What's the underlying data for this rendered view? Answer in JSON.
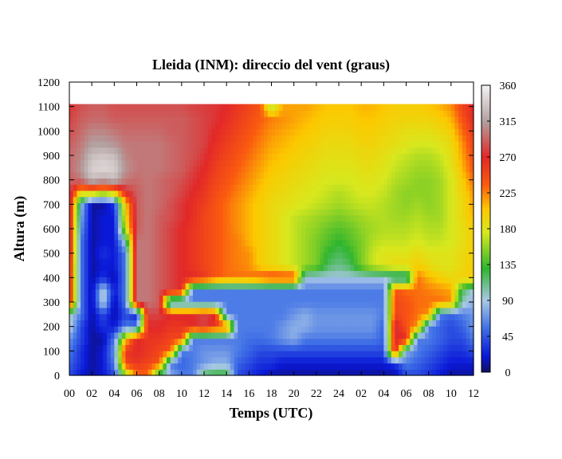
{
  "chart_data": {
    "type": "heatmap",
    "title": "Lleida (INM): direccio del vent (graus)",
    "xlabel": "Temps (UTC)",
    "ylabel": "Altura (m)",
    "x_ticks": [
      "00",
      "02",
      "04",
      "06",
      "08",
      "10",
      "12",
      "14",
      "16",
      "18",
      "20",
      "22",
      "24",
      "02",
      "04",
      "06",
      "08",
      "10",
      "12"
    ],
    "x_range_hours": [
      0,
      36
    ],
    "y_ticks": [
      0,
      100,
      200,
      300,
      400,
      500,
      600,
      700,
      800,
      900,
      1000,
      1100,
      1200
    ],
    "ylim": [
      0,
      1200
    ],
    "data_top_m": 1110,
    "colorbar": {
      "range": [
        0,
        360
      ],
      "ticks": [
        0,
        45,
        90,
        135,
        180,
        225,
        270,
        315,
        360
      ],
      "stops": [
        {
          "value": 0,
          "color": "#101060"
        },
        {
          "value": 20,
          "color": "#0a18d8"
        },
        {
          "value": 55,
          "color": "#3f6fe6"
        },
        {
          "value": 90,
          "color": "#a9c8e6"
        },
        {
          "value": 130,
          "color": "#2fb52f"
        },
        {
          "value": 175,
          "color": "#d8e81e"
        },
        {
          "value": 205,
          "color": "#fcc800"
        },
        {
          "value": 235,
          "color": "#fa5a10"
        },
        {
          "value": 270,
          "color": "#e22828"
        },
        {
          "value": 315,
          "color": "#b2a0a0"
        },
        {
          "value": 360,
          "color": "#f4f4f4"
        }
      ]
    },
    "z_grid": {
      "note_x": "hours from 00 UTC day 1, step 1h (0..36)",
      "note_y": "height in m, rows at 0,50,100,...,1100",
      "x": [
        0,
        1,
        2,
        3,
        4,
        5,
        6,
        7,
        8,
        9,
        10,
        11,
        12,
        13,
        14,
        15,
        16,
        17,
        18,
        19,
        20,
        21,
        22,
        23,
        24,
        25,
        26,
        27,
        28,
        29,
        30,
        31,
        32,
        33,
        34,
        35,
        36
      ],
      "y": [
        0,
        50,
        100,
        150,
        200,
        250,
        300,
        350,
        400,
        450,
        500,
        550,
        600,
        650,
        700,
        750,
        800,
        850,
        900,
        950,
        1000,
        1050,
        1100
      ],
      "z": [
        [
          40,
          20,
          10,
          20,
          40,
          150,
          230,
          230,
          110,
          80,
          60,
          60,
          120,
          130,
          130,
          40,
          30,
          20,
          10,
          10,
          10,
          10,
          10,
          10,
          10,
          10,
          10,
          10,
          10,
          10,
          40,
          40,
          30,
          20,
          10,
          10,
          10
        ],
        [
          50,
          30,
          10,
          20,
          60,
          250,
          260,
          250,
          240,
          60,
          50,
          60,
          70,
          80,
          80,
          50,
          40,
          30,
          30,
          20,
          20,
          20,
          20,
          20,
          20,
          20,
          20,
          20,
          20,
          30,
          60,
          50,
          40,
          30,
          20,
          20,
          20
        ],
        [
          60,
          30,
          10,
          20,
          70,
          260,
          270,
          260,
          250,
          240,
          60,
          60,
          70,
          70,
          70,
          60,
          50,
          40,
          40,
          40,
          40,
          40,
          40,
          40,
          40,
          40,
          40,
          40,
          40,
          280,
          80,
          60,
          50,
          40,
          30,
          30,
          40
        ],
        [
          70,
          40,
          10,
          10,
          60,
          200,
          270,
          260,
          260,
          250,
          250,
          60,
          60,
          60,
          60,
          60,
          55,
          55,
          60,
          70,
          80,
          60,
          60,
          60,
          60,
          60,
          60,
          60,
          50,
          270,
          270,
          60,
          60,
          50,
          40,
          40,
          60
        ],
        [
          100,
          40,
          10,
          30,
          20,
          60,
          60,
          270,
          270,
          260,
          260,
          270,
          280,
          260,
          250,
          60,
          60,
          60,
          60,
          70,
          80,
          80,
          70,
          70,
          70,
          70,
          70,
          70,
          50,
          280,
          240,
          220,
          60,
          50,
          40,
          50,
          70
        ],
        [
          100,
          60,
          10,
          40,
          10,
          40,
          20,
          280,
          280,
          270,
          270,
          270,
          280,
          270,
          60,
          60,
          60,
          60,
          60,
          60,
          70,
          80,
          70,
          70,
          70,
          70,
          70,
          70,
          60,
          250,
          240,
          230,
          220,
          60,
          50,
          60,
          70
        ],
        [
          280,
          60,
          10,
          100,
          10,
          60,
          300,
          300,
          290,
          60,
          60,
          60,
          60,
          60,
          60,
          60,
          60,
          60,
          60,
          60,
          60,
          60,
          60,
          60,
          60,
          60,
          60,
          60,
          60,
          250,
          240,
          230,
          230,
          230,
          220,
          100,
          80
        ],
        [
          280,
          60,
          10,
          100,
          20,
          60,
          300,
          300,
          290,
          280,
          270,
          60,
          60,
          60,
          60,
          60,
          60,
          60,
          60,
          60,
          60,
          60,
          60,
          60,
          60,
          60,
          60,
          60,
          60,
          240,
          230,
          230,
          225,
          220,
          215,
          120,
          90
        ],
        [
          280,
          60,
          10,
          30,
          10,
          60,
          300,
          300,
          290,
          280,
          270,
          270,
          260,
          240,
          230,
          230,
          230,
          240,
          250,
          250,
          250,
          90,
          90,
          90,
          90,
          90,
          90,
          90,
          90,
          90,
          90,
          230,
          210,
          200,
          190,
          200,
          200
        ],
        [
          280,
          60,
          10,
          20,
          20,
          60,
          300,
          300,
          290,
          280,
          270,
          260,
          250,
          240,
          230,
          225,
          220,
          200,
          190,
          180,
          170,
          160,
          150,
          120,
          110,
          120,
          150,
          170,
          180,
          190,
          190,
          200,
          190,
          180,
          180,
          190,
          200
        ],
        [
          290,
          60,
          10,
          30,
          20,
          60,
          300,
          300,
          290,
          280,
          270,
          260,
          250,
          240,
          230,
          225,
          220,
          200,
          190,
          180,
          170,
          160,
          150,
          130,
          120,
          130,
          150,
          170,
          180,
          180,
          180,
          190,
          180,
          180,
          180,
          190,
          200
        ],
        [
          290,
          60,
          10,
          20,
          20,
          100,
          300,
          300,
          290,
          280,
          270,
          260,
          250,
          240,
          230,
          225,
          210,
          200,
          190,
          180,
          170,
          160,
          150,
          140,
          130,
          140,
          150,
          165,
          170,
          170,
          170,
          175,
          170,
          170,
          175,
          185,
          200
        ],
        [
          290,
          70,
          10,
          20,
          20,
          170,
          290,
          300,
          290,
          280,
          270,
          260,
          250,
          240,
          230,
          220,
          210,
          200,
          190,
          180,
          170,
          160,
          155,
          145,
          140,
          145,
          155,
          160,
          165,
          165,
          165,
          170,
          165,
          165,
          175,
          185,
          200
        ],
        [
          290,
          80,
          10,
          20,
          20,
          190,
          290,
          300,
          290,
          285,
          275,
          265,
          250,
          240,
          230,
          220,
          210,
          200,
          190,
          180,
          170,
          165,
          160,
          155,
          150,
          155,
          160,
          165,
          165,
          160,
          160,
          165,
          160,
          160,
          175,
          190,
          210
        ],
        [
          290,
          90,
          10,
          10,
          30,
          200,
          290,
          300,
          295,
          285,
          275,
          265,
          255,
          240,
          230,
          220,
          210,
          200,
          190,
          185,
          180,
          175,
          170,
          165,
          160,
          165,
          170,
          170,
          165,
          160,
          155,
          160,
          155,
          160,
          175,
          190,
          215
        ],
        [
          290,
          190,
          200,
          180,
          200,
          270,
          290,
          300,
          295,
          290,
          280,
          270,
          260,
          245,
          235,
          225,
          215,
          205,
          195,
          190,
          185,
          180,
          175,
          170,
          165,
          170,
          175,
          175,
          170,
          160,
          155,
          155,
          155,
          160,
          175,
          195,
          220
        ],
        [
          290,
          300,
          330,
          320,
          330,
          300,
          295,
          300,
          295,
          290,
          285,
          275,
          265,
          250,
          240,
          230,
          220,
          210,
          200,
          195,
          190,
          185,
          180,
          175,
          175,
          175,
          180,
          180,
          175,
          165,
          160,
          155,
          155,
          160,
          175,
          200,
          230
        ],
        [
          295,
          310,
          340,
          345,
          340,
          310,
          300,
          300,
          300,
          295,
          290,
          280,
          270,
          255,
          245,
          235,
          225,
          215,
          205,
          200,
          195,
          190,
          185,
          180,
          180,
          180,
          185,
          185,
          180,
          170,
          165,
          160,
          160,
          165,
          180,
          210,
          240
        ],
        [
          295,
          305,
          330,
          335,
          330,
          305,
          300,
          300,
          300,
          295,
          290,
          285,
          275,
          260,
          250,
          240,
          230,
          220,
          210,
          205,
          200,
          195,
          190,
          185,
          185,
          185,
          190,
          190,
          185,
          175,
          170,
          165,
          165,
          170,
          185,
          215,
          245
        ],
        [
          290,
          300,
          315,
          315,
          310,
          300,
          300,
          300,
          300,
          295,
          290,
          285,
          280,
          265,
          255,
          245,
          235,
          225,
          215,
          210,
          205,
          200,
          195,
          190,
          190,
          190,
          195,
          195,
          190,
          185,
          180,
          175,
          175,
          180,
          190,
          220,
          250
        ],
        [
          285,
          295,
          305,
          305,
          300,
          295,
          295,
          295,
          295,
          290,
          290,
          285,
          280,
          270,
          260,
          250,
          240,
          230,
          220,
          215,
          210,
          205,
          200,
          195,
          195,
          195,
          200,
          200,
          195,
          190,
          185,
          185,
          185,
          190,
          200,
          230,
          260
        ],
        [
          280,
          290,
          295,
          295,
          290,
          290,
          290,
          290,
          290,
          290,
          290,
          285,
          280,
          275,
          265,
          255,
          245,
          235,
          225,
          220,
          215,
          210,
          205,
          200,
          200,
          200,
          205,
          205,
          200,
          195,
          195,
          195,
          195,
          200,
          210,
          240,
          270
        ],
        [
          275,
          285,
          290,
          290,
          285,
          285,
          285,
          285,
          285,
          285,
          285,
          280,
          278,
          275,
          270,
          260,
          250,
          240,
          165,
          215,
          215,
          215,
          210,
          205,
          205,
          205,
          210,
          210,
          205,
          200,
          200,
          200,
          205,
          210,
          220,
          250,
          270
        ]
      ]
    }
  }
}
